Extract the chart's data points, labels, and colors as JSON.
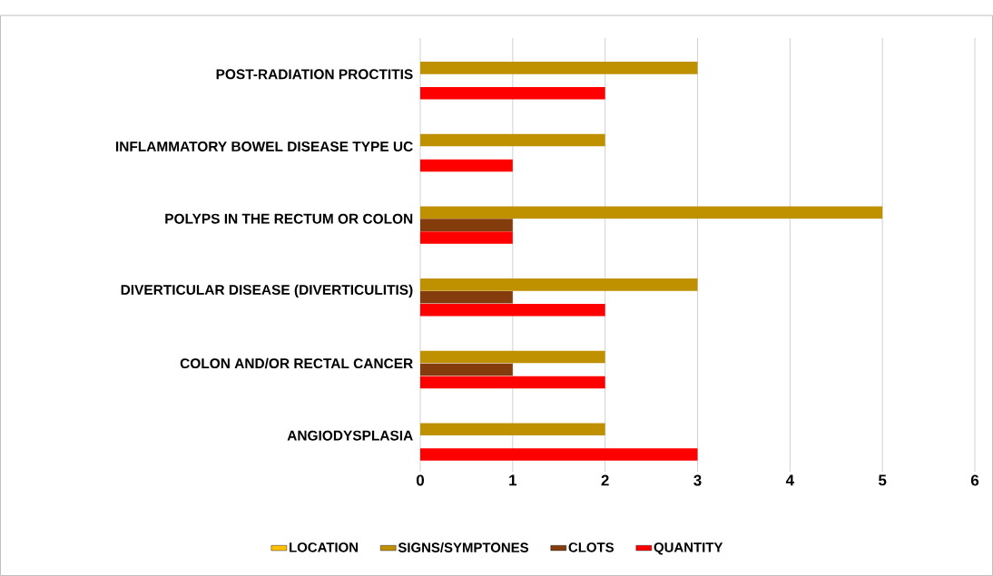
{
  "chart_data": {
    "type": "bar",
    "orientation": "horizontal",
    "categories": [
      "POST-RADIATION PROCTITIS",
      "INFLAMMATORY BOWEL DISEASE TYPE UC",
      "POLYPS IN THE RECTUM OR COLON",
      "DIVERTICULAR DISEASE (DIVERTICULITIS)",
      "COLON AND/OR RECTAL CANCER",
      "ANGIODYSPLASIA"
    ],
    "series": [
      {
        "name": "LOCATION",
        "color": "#ffc000",
        "values": [
          0,
          0,
          0,
          0,
          0,
          0
        ]
      },
      {
        "name": "SIGNS/SYMPTONES",
        "color": "#bf9000",
        "values": [
          3,
          2,
          5,
          3,
          2,
          2
        ]
      },
      {
        "name": "CLOTS",
        "color": "#843c0c",
        "values": [
          0,
          0,
          1,
          1,
          1,
          0
        ]
      },
      {
        "name": "QUANTITY",
        "color": "#ff0000",
        "values": [
          2,
          1,
          1,
          2,
          2,
          3
        ]
      }
    ],
    "xlim": [
      0,
      6
    ],
    "xticks": [
      0,
      1,
      2,
      3,
      4,
      5,
      6
    ],
    "grid": "x",
    "legend": "bottom"
  }
}
